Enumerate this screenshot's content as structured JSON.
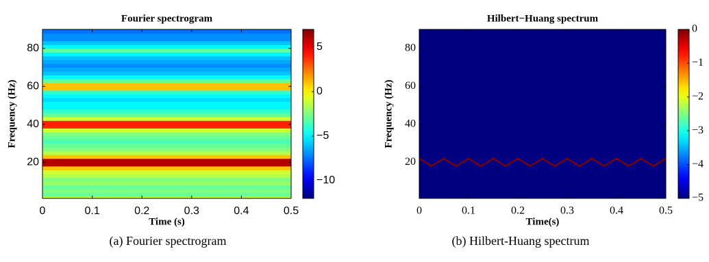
{
  "chart_data": [
    {
      "type": "heatmap",
      "title": "Fourier spectrogram",
      "xlabel": "Time (s)",
      "ylabel": "Frequency (Hz)",
      "caption": "(a) Fourier spectrogram",
      "xlim": [
        0,
        0.5
      ],
      "xticks": [
        0,
        0.1,
        0.2,
        0.3,
        0.4,
        0.5
      ],
      "ylim": [
        1,
        90
      ],
      "yticks": [
        20,
        40,
        60,
        80
      ],
      "y": [
        1,
        3,
        5,
        7,
        9,
        11,
        13,
        15,
        17,
        19,
        21,
        23,
        25,
        27,
        29,
        31,
        33,
        35,
        37,
        39,
        41,
        43,
        45,
        47,
        49,
        51,
        53,
        55,
        57,
        59,
        61,
        63,
        65,
        67,
        69,
        71,
        73,
        75,
        77,
        79,
        81,
        83,
        85,
        87,
        89
      ],
      "values": [
        -1,
        -3,
        -2.5,
        -3,
        -2,
        -2.5,
        -1.5,
        -1,
        1,
        6,
        6,
        1,
        -1.5,
        -2.5,
        -3,
        -3.5,
        -3,
        -2.5,
        -1,
        4,
        4,
        -1,
        -3,
        -4,
        -5,
        -5,
        -5.5,
        -5,
        -4,
        1,
        1,
        -3,
        -5,
        -6,
        -6.5,
        -7,
        -6.5,
        -6,
        -5,
        -3,
        -5,
        -6,
        -7,
        -7,
        -7.5
      ],
      "clim": [
        -12,
        7
      ],
      "cticks": [
        5,
        0,
        {
          "value": -5,
          "label": "−5"
        },
        {
          "value": -10,
          "label": "−10"
        }
      ]
    },
    {
      "type": "ridge",
      "title": "Hilbert−Huang spectrum",
      "xlabel": "Time(s)",
      "ylabel": "Frequency (Hz)",
      "caption": "(b) Hilbert-Huang spectrum",
      "xlim": [
        0,
        0.5
      ],
      "xticks": [
        0,
        0.1,
        0.2,
        0.3,
        0.4,
        0.5
      ],
      "ylim": [
        1,
        90
      ],
      "yticks": [
        20,
        40,
        60,
        80
      ],
      "background": -5,
      "ridge": {
        "value": 0,
        "x": [
          0,
          0.0125,
          0.025,
          0.0375,
          0.05,
          0.0625,
          0.075,
          0.0875,
          0.1,
          0.1125,
          0.125,
          0.1375,
          0.15,
          0.1625,
          0.175,
          0.1875,
          0.2,
          0.2125,
          0.225,
          0.2375,
          0.25,
          0.2625,
          0.275,
          0.2875,
          0.3,
          0.3125,
          0.325,
          0.3375,
          0.35,
          0.3625,
          0.375,
          0.3875,
          0.4,
          0.4125,
          0.425,
          0.4375,
          0.45,
          0.4625,
          0.475,
          0.4875,
          0.5
        ],
        "y": [
          22,
          20,
          18,
          20,
          22,
          20,
          18,
          20,
          22,
          20,
          18,
          20,
          22,
          20,
          18,
          20,
          22,
          20,
          18,
          20,
          22,
          20,
          18,
          20,
          22,
          20,
          18,
          20,
          22,
          20,
          18,
          20,
          22,
          20,
          18,
          20,
          22,
          20,
          18,
          20,
          22
        ]
      },
      "clim": [
        -5,
        0
      ],
      "cticks": [
        0,
        {
          "value": -1,
          "label": "−1"
        },
        {
          "value": -2,
          "label": "−2"
        },
        {
          "value": -3,
          "label": "−3"
        },
        {
          "value": -4,
          "label": "−4"
        },
        {
          "value": -5,
          "label": "−5"
        }
      ]
    }
  ]
}
